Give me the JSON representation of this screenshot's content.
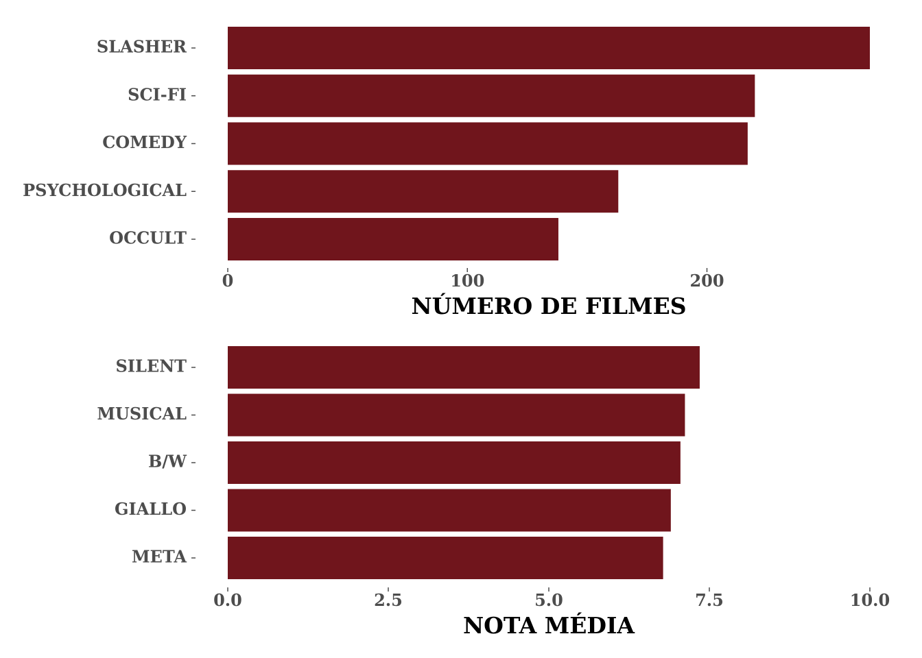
{
  "chart_data": [
    {
      "type": "bar",
      "orientation": "horizontal",
      "categories": [
        "SLASHER",
        "SCI-FI",
        "COMEDY",
        "PSYCHOLOGICAL",
        "OCCULT"
      ],
      "values": [
        268,
        220,
        217,
        163,
        138
      ],
      "xlabel": "NÚMERO DE FILMES",
      "ylabel": "",
      "xlim": [
        0,
        268
      ],
      "xticks": [
        0,
        100,
        200
      ],
      "xtick_labels": [
        "0",
        "100",
        "200"
      ],
      "bar_color": "#70151c",
      "grid": false
    },
    {
      "type": "bar",
      "orientation": "horizontal",
      "categories": [
        "SILENT",
        "MUSICAL",
        "B/W",
        "GIALLO",
        "META"
      ],
      "values": [
        7.35,
        7.12,
        7.05,
        6.9,
        6.78
      ],
      "xlabel": "NOTA MÉDIA",
      "ylabel": "",
      "xlim": [
        0,
        10
      ],
      "xticks": [
        0,
        2.5,
        5,
        7.5,
        10
      ],
      "xtick_labels": [
        "0.0",
        "2.5",
        "5.0",
        "7.5",
        "10.0"
      ],
      "bar_color": "#70151c",
      "grid": false
    }
  ]
}
